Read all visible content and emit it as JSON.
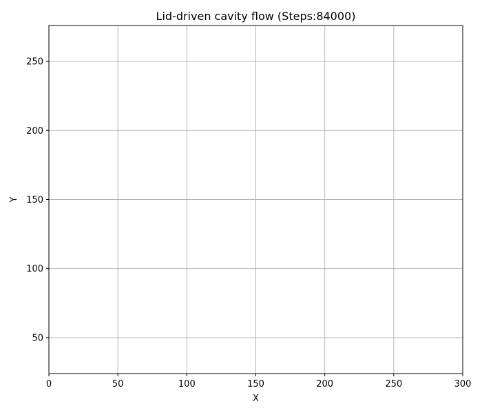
{
  "chart_data": {
    "type": "line",
    "title": "Lid-driven cavity flow (Steps:84000)",
    "xlabel": "X",
    "ylabel": "Y",
    "xlim": [
      0,
      300
    ],
    "ylim": [
      24,
      276
    ],
    "xticks": [
      0,
      50,
      100,
      150,
      200,
      250,
      300
    ],
    "yticks": [
      50,
      100,
      150,
      200,
      250
    ],
    "grid": true,
    "series": []
  },
  "colors": {
    "grid": "#b0b0b0",
    "axes": "#000000",
    "background": "#ffffff"
  }
}
